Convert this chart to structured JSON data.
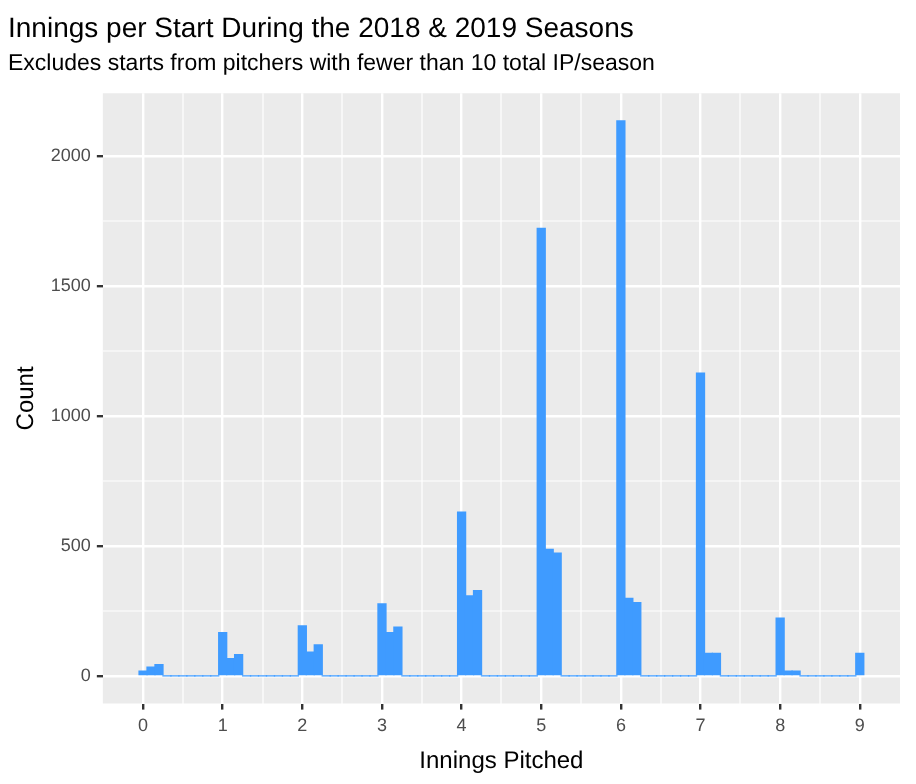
{
  "chart_data": {
    "type": "histogram",
    "title": "Innings per Start During the 2018 & 2019 Seasons",
    "subtitle": "Excludes starts from pitchers with fewer than 10 total IP/season",
    "xlabel": "Innings Pitched",
    "ylabel": "Count",
    "color": "#3f9bff",
    "grid": true,
    "bins": [
      -0.05,
      0.05,
      0.15,
      0.25,
      0.35,
      0.45,
      0.55,
      0.65,
      0.75,
      0.85,
      0.95,
      1.05,
      1.15,
      1.25,
      1.35,
      1.45,
      1.55,
      1.65,
      1.75,
      1.85,
      1.95,
      2.05,
      2.15,
      2.25,
      2.35,
      2.45,
      2.55,
      2.65,
      2.75,
      2.85,
      2.95,
      3.05,
      3.15,
      3.25,
      3.35,
      3.45,
      3.55,
      3.65,
      3.75,
      3.85,
      3.95,
      4.05,
      4.15,
      4.25,
      4.35,
      4.45,
      4.55,
      4.65,
      4.75,
      4.85,
      4.95,
      5.05,
      5.15,
      5.25,
      5.35,
      5.45,
      5.55,
      5.65,
      5.75,
      5.85,
      5.95,
      6.05,
      6.15,
      6.25,
      6.35,
      6.45,
      6.55,
      6.65,
      6.75,
      6.85,
      6.95,
      7.05,
      7.15,
      7.25,
      7.35,
      7.45,
      7.55,
      7.65,
      7.75,
      7.85,
      7.95,
      8.05,
      8.15,
      8.25,
      8.35,
      8.45,
      8.55,
      8.65,
      8.75,
      8.85,
      8.95,
      9.05
    ],
    "values": [
      18,
      33,
      43,
      0,
      0,
      0,
      0,
      0,
      0,
      0,
      166,
      66,
      81,
      0,
      0,
      0,
      0,
      0,
      0,
      0,
      192,
      91,
      119,
      0,
      0,
      0,
      0,
      0,
      0,
      0,
      277,
      166,
      187,
      0,
      0,
      0,
      0,
      0,
      0,
      0,
      630,
      308,
      328,
      0,
      0,
      0,
      0,
      0,
      0,
      0,
      1722,
      487,
      472,
      0,
      0,
      0,
      0,
      0,
      0,
      0,
      2136,
      298,
      282,
      0,
      0,
      0,
      0,
      0,
      0,
      0,
      1165,
      86,
      86,
      0,
      0,
      0,
      0,
      0,
      0,
      0,
      222,
      18,
      18,
      0,
      0,
      0,
      0,
      0,
      0,
      0,
      86
    ],
    "xlim": [
      -0.505,
      9.505
    ],
    "ylim": [
      -107,
      2243
    ],
    "xticks": [
      0,
      {
        "value": 0.5,
        "label": null
      },
      1,
      {
        "value": 1.5,
        "label": null
      },
      2,
      {
        "value": 2.5,
        "label": null
      },
      3,
      {
        "value": 3.5,
        "label": null
      },
      4,
      {
        "value": 4.5,
        "label": null
      },
      5,
      {
        "value": 5.5,
        "label": null
      },
      6,
      {
        "value": 6.5,
        "label": null
      },
      7,
      {
        "value": 7.5,
        "label": null
      },
      8,
      {
        "value": 8.5,
        "label": null
      },
      9
    ],
    "yticks": [
      0,
      {
        "value": 250,
        "label": null
      },
      500,
      {
        "value": 750,
        "label": null
      },
      1000,
      {
        "value": 1250,
        "label": null
      },
      1500,
      {
        "value": 1750,
        "label": null
      },
      2000
    ]
  }
}
